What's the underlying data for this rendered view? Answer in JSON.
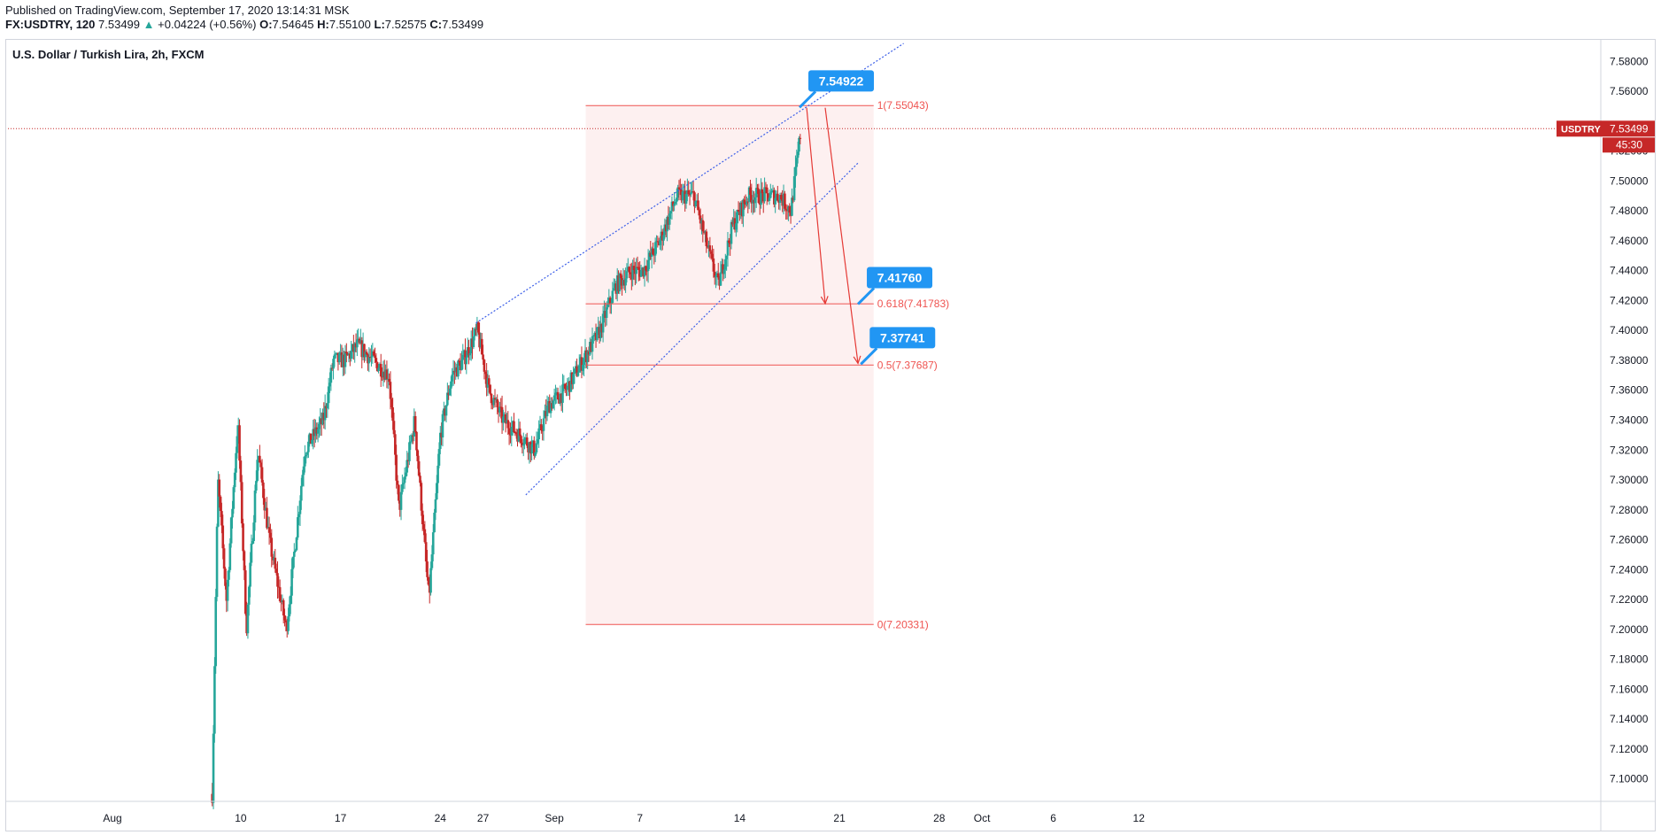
{
  "header": {
    "published": "Published on TradingView.com, September 17, 2020 13:14:31 MSK",
    "symbol_interval": "FX:USDTRY, 120",
    "last": "7.53499",
    "change": "+0.04224 (+0.56%)",
    "o_label": "O:",
    "o": "7.54645",
    "h_label": "H:",
    "h": "7.55100",
    "l_label": "L:",
    "l": "7.52575",
    "c_label": "C:",
    "c": "7.53499",
    "up_arrow": "▲"
  },
  "chart_data": {
    "type": "candlestick",
    "title": "U.S. Dollar / Turkish Lira, 2h, FXCM",
    "ylim": [
      7.085,
      7.595
    ],
    "y_ticks": [
      "7.10000",
      "7.12000",
      "7.14000",
      "7.16000",
      "7.18000",
      "7.20000",
      "7.22000",
      "7.24000",
      "7.26000",
      "7.28000",
      "7.30000",
      "7.32000",
      "7.34000",
      "7.36000",
      "7.38000",
      "7.40000",
      "7.42000",
      "7.44000",
      "7.46000",
      "7.48000",
      "7.50000",
      "7.52000",
      "7.54000",
      "7.56000",
      "7.58000"
    ],
    "x_ticks": [
      {
        "label": "Aug",
        "day": 0
      },
      {
        "label": "10",
        "day": 9
      },
      {
        "label": "17",
        "day": 16
      },
      {
        "label": "24",
        "day": 23
      },
      {
        "label": "27",
        "day": 26
      },
      {
        "label": "Sep",
        "day": 31
      },
      {
        "label": "7",
        "day": 37
      },
      {
        "label": "14",
        "day": 44
      },
      {
        "label": "21",
        "day": 51
      },
      {
        "label": "28",
        "day": 58
      },
      {
        "label": "Oct",
        "day": 61
      },
      {
        "label": "6",
        "day": 66
      },
      {
        "label": "12",
        "day": 72
      }
    ],
    "price_path": [
      {
        "day": 7.0,
        "price": 7.09
      },
      {
        "day": 7.4,
        "price": 7.3
      },
      {
        "day": 8.0,
        "price": 7.22
      },
      {
        "day": 8.8,
        "price": 7.34
      },
      {
        "day": 9.4,
        "price": 7.2
      },
      {
        "day": 10.2,
        "price": 7.32
      },
      {
        "day": 11.0,
        "price": 7.26
      },
      {
        "day": 12.2,
        "price": 7.2
      },
      {
        "day": 13.5,
        "price": 7.32
      },
      {
        "day": 14.8,
        "price": 7.34
      },
      {
        "day": 15.5,
        "price": 7.38
      },
      {
        "day": 16.3,
        "price": 7.38
      },
      {
        "day": 17.2,
        "price": 7.39
      },
      {
        "day": 18.3,
        "price": 7.38
      },
      {
        "day": 19.4,
        "price": 7.37
      },
      {
        "day": 20.1,
        "price": 7.28
      },
      {
        "day": 21.2,
        "price": 7.34
      },
      {
        "day": 22.2,
        "price": 7.22
      },
      {
        "day": 23.0,
        "price": 7.33
      },
      {
        "day": 23.8,
        "price": 7.37
      },
      {
        "day": 24.6,
        "price": 7.38
      },
      {
        "day": 25.6,
        "price": 7.4
      },
      {
        "day": 26.4,
        "price": 7.36
      },
      {
        "day": 27.4,
        "price": 7.34
      },
      {
        "day": 28.6,
        "price": 7.33
      },
      {
        "day": 29.6,
        "price": 7.32
      },
      {
        "day": 30.6,
        "price": 7.35
      },
      {
        "day": 31.8,
        "price": 7.36
      },
      {
        "day": 33.0,
        "price": 7.38
      },
      {
        "day": 34.2,
        "price": 7.4
      },
      {
        "day": 35.3,
        "price": 7.43
      },
      {
        "day": 36.4,
        "price": 7.44
      },
      {
        "day": 37.2,
        "price": 7.44
      },
      {
        "day": 38.4,
        "price": 7.46
      },
      {
        "day": 39.6,
        "price": 7.49
      },
      {
        "day": 40.8,
        "price": 7.49
      },
      {
        "day": 41.6,
        "price": 7.46
      },
      {
        "day": 42.5,
        "price": 7.43
      },
      {
        "day": 43.5,
        "price": 7.47
      },
      {
        "day": 44.6,
        "price": 7.49
      },
      {
        "day": 45.6,
        "price": 7.49
      },
      {
        "day": 46.8,
        "price": 7.49
      },
      {
        "day": 47.6,
        "price": 7.48
      },
      {
        "day": 48.3,
        "price": 7.535
      }
    ],
    "fib_levels": [
      {
        "label": "1(7.55043)",
        "price": 7.55043
      },
      {
        "label": "0.618(7.41783)",
        "price": 7.41783
      },
      {
        "label": "0.5(7.37687)",
        "price": 7.37687
      },
      {
        "label": "0(7.20331)",
        "price": 7.20331
      }
    ],
    "fib_range_days": [
      33.2,
      53.4
    ],
    "channel_upper": {
      "p1": {
        "day": 25.5,
        "price": 7.405
      },
      "p2": {
        "day": 55.5,
        "price": 7.592
      }
    },
    "channel_lower": {
      "p1": {
        "day": 29.0,
        "price": 7.29
      },
      "p2": {
        "day": 52.3,
        "price": 7.512
      }
    },
    "callouts": [
      {
        "text": "7.54922",
        "day": 48.2,
        "price": 7.5492
      },
      {
        "text": "7.41760",
        "day": 52.3,
        "price": 7.4176
      },
      {
        "text": "7.37741",
        "day": 52.5,
        "price": 7.3774
      }
    ],
    "arrows": [
      {
        "from": {
          "day": 48.7,
          "price": 7.549
        },
        "to": {
          "day": 50.0,
          "price": 7.418
        }
      },
      {
        "from": {
          "day": 50.0,
          "price": 7.549
        },
        "to": {
          "day": 52.3,
          "price": 7.378
        }
      }
    ],
    "last_price": {
      "symbol": "USDTRY",
      "price": "7.53499",
      "value": 7.53499,
      "countdown": "45:30"
    },
    "colors": {
      "up": "#26a69a",
      "down": "#c62828",
      "wick": "#333333",
      "fib": "#ef5350",
      "fib_fill": "#fdecec",
      "channel": "#3c5fe8",
      "callout": "#2196f3",
      "arrow": "#e53935",
      "price_tag": "#c62828"
    }
  }
}
